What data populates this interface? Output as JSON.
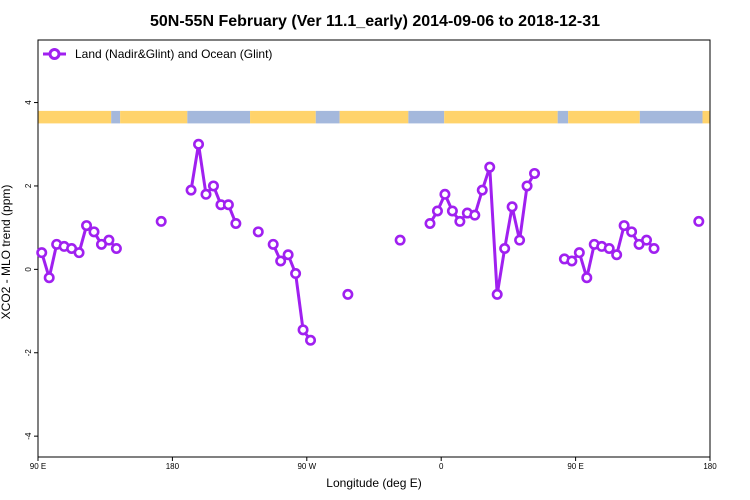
{
  "chart_data": {
    "type": "line",
    "title": "50N-55N February (Ver 11.1_early)   2014-09-06 to 2018-12-31",
    "xlabel": "Longitude (deg E)",
    "ylabel": "XCO2 - MLO trend (ppm)",
    "x_ticks": [
      {
        "value": 90,
        "label": "90 E"
      },
      {
        "value": 180,
        "label": "180"
      },
      {
        "value": 270,
        "label": "90 W"
      },
      {
        "value": 360,
        "label": "0"
      },
      {
        "value": 450,
        "label": "90 E"
      },
      {
        "value": 540,
        "label": "180"
      }
    ],
    "y_ticks": [
      {
        "value": -4,
        "label": "-4"
      },
      {
        "value": -2,
        "label": "-2"
      },
      {
        "value": 0,
        "label": "0"
      },
      {
        "value": 2,
        "label": "2"
      },
      {
        "value": 4,
        "label": "4"
      }
    ],
    "xlim": [
      90,
      540
    ],
    "ylim": [
      -4.5,
      5.5
    ],
    "grid": false,
    "legend_position": "top-left",
    "series_color": "#a020f0",
    "land_color": "#ffd36b",
    "ocean_color": "#a4b8dc",
    "band_y": [
      3.5,
      3.8
    ],
    "series": [
      {
        "name": "Land (Nadir&Glint) and Ocean (Glint)",
        "segments": [
          [
            [
              92.5,
              0.4
            ],
            [
              97.5,
              -0.2
            ],
            [
              102.5,
              0.6
            ],
            [
              107.5,
              0.55
            ],
            [
              112.5,
              0.5
            ],
            [
              117.5,
              0.4
            ],
            [
              122.5,
              1.05
            ],
            [
              127.5,
              0.9
            ],
            [
              132.5,
              0.6
            ],
            [
              137.5,
              0.7
            ],
            [
              142.5,
              0.5
            ]
          ],
          [
            [
              172.5,
              1.15
            ]
          ],
          [
            [
              192.5,
              1.9
            ],
            [
              197.5,
              3.0
            ],
            [
              202.5,
              1.8
            ],
            [
              207.5,
              2.0
            ],
            [
              212.5,
              1.55
            ],
            [
              217.5,
              1.55
            ],
            [
              222.5,
              1.1
            ]
          ],
          [
            [
              237.5,
              0.9
            ]
          ],
          [
            [
              247.5,
              0.6
            ],
            [
              252.5,
              0.2
            ],
            [
              257.5,
              0.35
            ],
            [
              262.5,
              -0.1
            ],
            [
              267.5,
              -1.45
            ],
            [
              272.5,
              -1.7
            ]
          ],
          [
            [
              297.5,
              -0.6
            ]
          ],
          [
            [
              332.5,
              0.7
            ]
          ],
          [
            [
              352.5,
              1.1
            ],
            [
              357.5,
              1.4
            ],
            [
              362.5,
              1.8
            ],
            [
              367.5,
              1.4
            ],
            [
              372.5,
              1.15
            ],
            [
              377.5,
              1.35
            ],
            [
              382.5,
              1.3
            ],
            [
              387.5,
              1.9
            ],
            [
              392.5,
              2.45
            ],
            [
              397.5,
              -0.6
            ],
            [
              402.5,
              0.5
            ],
            [
              407.5,
              1.5
            ],
            [
              412.5,
              0.7
            ],
            [
              417.5,
              2.0
            ],
            [
              422.5,
              2.3
            ]
          ],
          [
            [
              442.5,
              0.25
            ],
            [
              447.5,
              0.2
            ],
            [
              452.5,
              0.4
            ],
            [
              457.5,
              -0.2
            ],
            [
              462.5,
              0.6
            ],
            [
              467.5,
              0.55
            ],
            [
              472.5,
              0.5
            ],
            [
              477.5,
              0.35
            ],
            [
              482.5,
              1.05
            ],
            [
              487.5,
              0.9
            ],
            [
              492.5,
              0.6
            ],
            [
              497.5,
              0.7
            ],
            [
              502.5,
              0.5
            ]
          ],
          [
            [
              532.5,
              1.15
            ]
          ]
        ]
      }
    ],
    "surface_band": [
      {
        "from": 90,
        "to": 139,
        "type": "land"
      },
      {
        "from": 139,
        "to": 145,
        "type": "ocean"
      },
      {
        "from": 145,
        "to": 190,
        "type": "land"
      },
      {
        "from": 190,
        "to": 232,
        "type": "ocean"
      },
      {
        "from": 232,
        "to": 276,
        "type": "land"
      },
      {
        "from": 276,
        "to": 292,
        "type": "ocean"
      },
      {
        "from": 292,
        "to": 338,
        "type": "land"
      },
      {
        "from": 338,
        "to": 362,
        "type": "ocean"
      },
      {
        "from": 362,
        "to": 438,
        "type": "land"
      },
      {
        "from": 438,
        "to": 445,
        "type": "ocean"
      },
      {
        "from": 445,
        "to": 493,
        "type": "land"
      },
      {
        "from": 493,
        "to": 535,
        "type": "ocean"
      },
      {
        "from": 535,
        "to": 540,
        "type": "land"
      }
    ]
  }
}
